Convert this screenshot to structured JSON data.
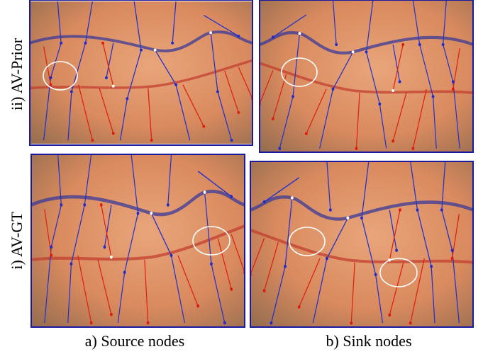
{
  "figure": {
    "row_labels": [
      "ii) AV-Prior",
      "i) AV-GT"
    ],
    "column_labels": [
      "a) Source nodes",
      "b) Sink nodes"
    ]
  }
}
